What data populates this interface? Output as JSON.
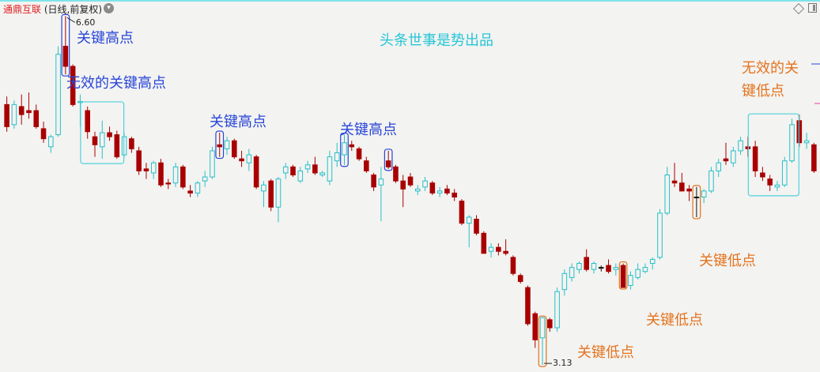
{
  "header": {
    "stock_name": "通鼎互联",
    "mode": "(日线,前复权)",
    "menu_icon": "chevron-down-circle-icon",
    "right_icons": [
      "diamond-icon",
      "panel-toggle-icon"
    ]
  },
  "watermark": "头条世事是势出品",
  "chart_data": {
    "type": "candlestick",
    "ylim": [
      3.06,
      6.76
    ],
    "grid": false,
    "colors": {
      "up": "#26c0c8",
      "down": "#a80000",
      "flat": "#111111",
      "key_high": "#2846d8",
      "key_low": "#e4731e",
      "invalid_box": "#4fd2dc"
    },
    "max_label": "6.60",
    "min_label": "3.13",
    "max_index": 8,
    "min_index": 73,
    "candles": [
      [
        5.72,
        5.8,
        5.45,
        5.5
      ],
      [
        5.52,
        5.76,
        5.48,
        5.72
      ],
      [
        5.7,
        5.82,
        5.52,
        5.62
      ],
      [
        5.66,
        5.84,
        5.58,
        5.64
      ],
      [
        5.66,
        5.72,
        5.48,
        5.5
      ],
      [
        5.48,
        5.55,
        5.34,
        5.38
      ],
      [
        5.3,
        5.42,
        5.24,
        5.4
      ],
      [
        5.42,
        6.3,
        5.4,
        6.22
      ],
      [
        6.3,
        6.6,
        6.02,
        6.1
      ],
      [
        6.1,
        6.12,
        5.7,
        5.72
      ],
      [
        5.74,
        5.82,
        5.5,
        5.75
      ],
      [
        5.66,
        5.7,
        5.38,
        5.45
      ],
      [
        5.4,
        5.45,
        5.2,
        5.32
      ],
      [
        5.3,
        5.56,
        5.18,
        5.44
      ],
      [
        5.44,
        5.5,
        5.36,
        5.4
      ],
      [
        5.42,
        5.46,
        5.18,
        5.2
      ],
      [
        5.22,
        5.44,
        5.2,
        5.4
      ],
      [
        5.38,
        5.4,
        5.24,
        5.28
      ],
      [
        5.26,
        5.3,
        5.02,
        5.06
      ],
      [
        5.08,
        5.14,
        4.98,
        5.06
      ],
      [
        5.04,
        5.16,
        4.98,
        5.14
      ],
      [
        5.14,
        5.18,
        4.9,
        4.92
      ],
      [
        4.94,
        4.98,
        4.88,
        4.93
      ],
      [
        4.94,
        5.14,
        4.9,
        5.1
      ],
      [
        5.1,
        5.12,
        4.88,
        4.9
      ],
      [
        4.86,
        4.92,
        4.8,
        4.84
      ],
      [
        4.84,
        4.96,
        4.8,
        4.94
      ],
      [
        4.96,
        5.06,
        4.9,
        5.0
      ],
      [
        5.0,
        5.3,
        4.98,
        5.26
      ],
      [
        5.32,
        5.44,
        5.2,
        5.3
      ],
      [
        5.28,
        5.4,
        5.22,
        5.36
      ],
      [
        5.36,
        5.38,
        5.18,
        5.2
      ],
      [
        5.18,
        5.26,
        5.1,
        5.16
      ],
      [
        5.14,
        5.28,
        5.06,
        5.22
      ],
      [
        5.2,
        5.22,
        4.88,
        4.9
      ],
      [
        4.86,
        4.96,
        4.7,
        4.92
      ],
      [
        4.96,
        4.98,
        4.66,
        4.7
      ],
      [
        4.7,
        5.0,
        4.55,
        4.98
      ],
      [
        5.04,
        5.14,
        4.98,
        5.1
      ],
      [
        5.1,
        5.12,
        5.0,
        5.02
      ],
      [
        4.96,
        5.1,
        4.94,
        5.06
      ],
      [
        5.08,
        5.16,
        5.04,
        5.12
      ],
      [
        5.12,
        5.2,
        5.02,
        5.04
      ],
      [
        5.02,
        5.06,
        5.0,
        5.04
      ],
      [
        4.96,
        5.26,
        4.92,
        5.2
      ],
      [
        5.16,
        5.34,
        5.1,
        5.24
      ],
      [
        5.22,
        5.42,
        5.12,
        5.34
      ],
      [
        5.32,
        5.36,
        5.26,
        5.3
      ],
      [
        5.28,
        5.3,
        5.16,
        5.18
      ],
      [
        5.16,
        5.2,
        5.04,
        5.06
      ],
      [
        5.02,
        5.04,
        4.86,
        4.9
      ],
      [
        4.92,
        5.1,
        4.56,
        4.98
      ],
      [
        5.16,
        5.26,
        5.08,
        5.1
      ],
      [
        5.1,
        5.12,
        4.94,
        4.96
      ],
      [
        4.96,
        5.02,
        4.7,
        4.88
      ],
      [
        5.0,
        5.04,
        4.9,
        4.92
      ],
      [
        4.86,
        4.92,
        4.82,
        4.88
      ],
      [
        4.9,
        5.0,
        4.86,
        4.96
      ],
      [
        4.94,
        4.96,
        4.82,
        4.84
      ],
      [
        4.84,
        4.9,
        4.8,
        4.86
      ],
      [
        4.88,
        4.92,
        4.82,
        4.84
      ],
      [
        4.84,
        4.88,
        4.76,
        4.8
      ],
      [
        4.76,
        4.78,
        4.52,
        4.54
      ],
      [
        4.54,
        4.62,
        4.3,
        4.6
      ],
      [
        4.58,
        4.62,
        4.42,
        4.44
      ],
      [
        4.44,
        4.46,
        4.24,
        4.24
      ],
      [
        4.26,
        4.34,
        4.2,
        4.3
      ],
      [
        4.3,
        4.34,
        4.22,
        4.26
      ],
      [
        4.26,
        4.38,
        4.22,
        4.24
      ],
      [
        4.2,
        4.22,
        4.02,
        4.04
      ],
      [
        4.02,
        4.04,
        3.94,
        3.96
      ],
      [
        3.9,
        3.92,
        3.52,
        3.54
      ],
      [
        3.64,
        3.66,
        3.3,
        3.38
      ],
      [
        3.4,
        3.6,
        3.13,
        3.6
      ],
      [
        3.58,
        3.6,
        3.46,
        3.5
      ],
      [
        3.5,
        3.9,
        3.46,
        3.86
      ],
      [
        3.88,
        4.08,
        3.82,
        4.04
      ],
      [
        4.0,
        4.14,
        3.96,
        4.1
      ],
      [
        4.08,
        4.16,
        4.04,
        4.14
      ],
      [
        4.2,
        4.28,
        4.06,
        4.08
      ],
      [
        4.08,
        4.16,
        4.04,
        4.14
      ],
      [
        4.1,
        4.12,
        4.06,
        4.1
      ],
      [
        4.12,
        4.18,
        4.04,
        4.06
      ],
      [
        4.08,
        4.14,
        4.02,
        4.1
      ],
      [
        4.12,
        4.14,
        3.9,
        3.9
      ],
      [
        3.92,
        4.06,
        3.88,
        4.02
      ],
      [
        4.0,
        4.14,
        3.98,
        4.08
      ],
      [
        4.06,
        4.14,
        4.04,
        4.1
      ],
      [
        4.14,
        4.2,
        4.08,
        4.18
      ],
      [
        4.2,
        4.68,
        4.18,
        4.64
      ],
      [
        4.64,
        5.1,
        4.62,
        5.02
      ],
      [
        4.96,
        5.14,
        4.9,
        4.94
      ],
      [
        4.94,
        5.04,
        4.86,
        4.86
      ],
      [
        4.88,
        4.92,
        4.76,
        4.86
      ],
      [
        4.8,
        4.9,
        4.6,
        4.8
      ],
      [
        4.8,
        4.88,
        4.74,
        4.86
      ],
      [
        4.86,
        5.1,
        4.84,
        5.06
      ],
      [
        5.06,
        5.18,
        5.0,
        5.14
      ],
      [
        5.18,
        5.34,
        5.12,
        5.16
      ],
      [
        5.14,
        5.3,
        5.1,
        5.26
      ],
      [
        5.26,
        5.4,
        5.22,
        5.36
      ],
      [
        5.3,
        5.4,
        5.2,
        5.28
      ],
      [
        5.3,
        5.36,
        5.0,
        5.06
      ],
      [
        5.04,
        5.1,
        4.96,
        5.0
      ],
      [
        4.98,
        5.02,
        4.86,
        4.92
      ],
      [
        4.9,
        4.96,
        4.86,
        4.92
      ],
      [
        4.92,
        5.2,
        4.9,
        5.16
      ],
      [
        5.16,
        5.58,
        5.14,
        5.52
      ],
      [
        5.56,
        5.62,
        5.3,
        5.34
      ],
      [
        5.34,
        5.44,
        5.28,
        5.36
      ],
      [
        5.32,
        5.34,
        5.04,
        5.06
      ]
    ],
    "marked_candles": [
      {
        "type": "key_high",
        "from": 8,
        "to": 8
      },
      {
        "type": "invalid_key_high",
        "from": 11,
        "to": 15
      },
      {
        "type": "key_high",
        "from": 29,
        "to": 29
      },
      {
        "type": "key_high",
        "from": 46,
        "to": 46
      },
      {
        "type": "key_high",
        "from": 52,
        "to": 52
      },
      {
        "type": "key_low",
        "from": 73,
        "to": 73
      },
      {
        "type": "key_low",
        "from": 84,
        "to": 84
      },
      {
        "type": "key_low",
        "from": 94,
        "to": 94
      },
      {
        "type": "invalid_key_low",
        "from": 102,
        "to": 107
      }
    ],
    "annotations": {
      "key_high_1": "关键高点",
      "invalid_key_high": "无效的关键高点",
      "key_high_2": "关键高点",
      "key_high_3": "关键高点",
      "invalid_key_low_line1": "无效的关",
      "invalid_key_low_line2": "键低点",
      "key_low_1": "关键低点",
      "key_low_2": "关键低点",
      "key_low_3": "关键低点"
    }
  }
}
